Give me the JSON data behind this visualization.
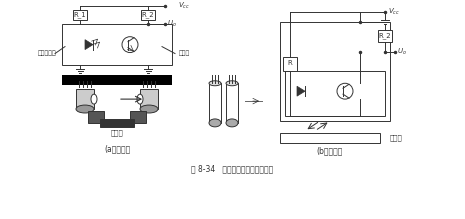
{
  "title": "图 8-34   光遮断器工作原理说明图",
  "label_a": "(a）对射型",
  "label_b": "(b）反射型",
  "vcc_label": "V_{cc}",
  "uo_label": "U_o",
  "r1_label": "R_1",
  "r2_label": "R_2",
  "r_label": "R",
  "led_label": "发光二极管",
  "pt_label": "光敏管",
  "zg_label": "遮光体",
  "fg_label": "反光体",
  "bg_color": "#f5f5f5",
  "line_color": "#333333",
  "black_fill": "#111111",
  "gray_fill": "#888888"
}
